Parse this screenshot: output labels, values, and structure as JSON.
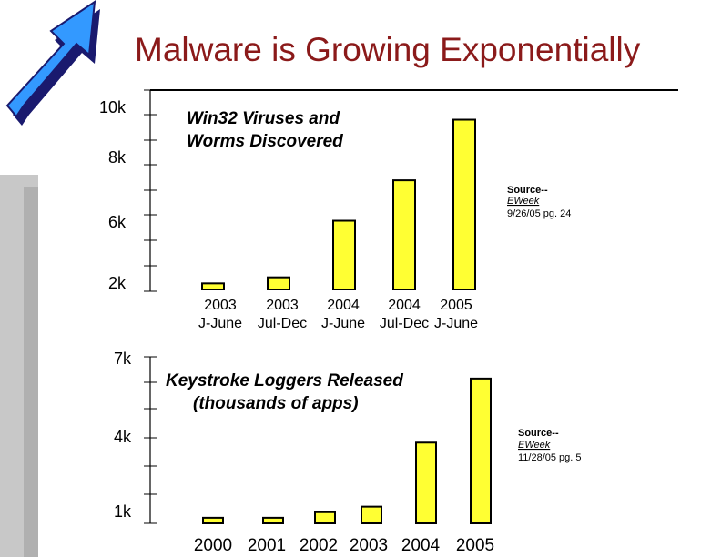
{
  "slide": {
    "title": "Malware is Growing Exponentially",
    "accent_color": "#8b1a1a",
    "arrow_color": "#3399ff",
    "arrow_icon": "up-right-arrow-icon"
  },
  "chart_data": [
    {
      "type": "bar",
      "title": [
        "Win32 Viruses and",
        "Worms Discovered"
      ],
      "categories": [
        [
          "2003",
          "J-June"
        ],
        [
          "2003",
          "Jul-Dec"
        ],
        [
          "2004",
          "J-June"
        ],
        [
          "2004",
          "Jul-Dec"
        ],
        [
          "2005",
          "J-June"
        ]
      ],
      "values": [
        2.2,
        2.5,
        5.3,
        7.3,
        10.3
      ],
      "y_tick_labels": [
        "10k",
        "8k",
        "6k",
        "2k"
      ],
      "bar_color": "#ffff33",
      "source": {
        "label": "Source--",
        "publication": "EWeek",
        "detail": "9/26/05 pg. 24"
      }
    },
    {
      "type": "bar",
      "title": [
        "Keystroke Loggers Released",
        "(thousands of apps)"
      ],
      "categories": [
        "2000",
        "2001",
        "2002",
        "2003",
        "2004",
        "2005"
      ],
      "values": [
        1.2,
        1.2,
        1.4,
        1.6,
        3.9,
        6.2
      ],
      "y_tick_labels": [
        "7k",
        "4k",
        "1k"
      ],
      "bar_color": "#ffff33",
      "source": {
        "label": "Source--",
        "publication": "EWeek",
        "detail": "11/28/05 pg. 5"
      }
    }
  ]
}
